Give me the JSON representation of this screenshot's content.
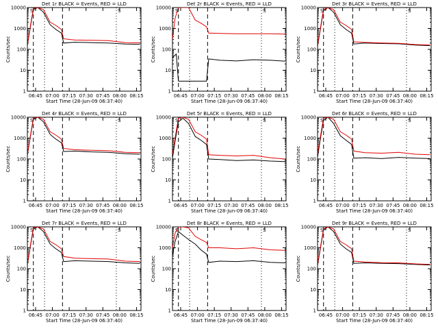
{
  "colors": {
    "events": "#000000",
    "lld": "#e00000"
  },
  "chart_data": [
    {
      "type": "line",
      "title": "Det 1r BLACK = Events, RED = LLD",
      "xlabel": "Start Time (28-Jun-09 06:37:40)",
      "ylabel": "Counts/sec",
      "yscale": "log",
      "ylim": [
        1,
        10000
      ],
      "xlim": [
        "06:37:40",
        "08:19:00"
      ],
      "xticks": [
        "06:45",
        "07:00",
        "07:15",
        "07:30",
        "07:45",
        "08:00",
        "08:15"
      ],
      "yticks": [
        "1",
        "10",
        "100",
        "1000",
        "10000"
      ],
      "saa_marker": "S",
      "vlines_dashed": [
        "06:43",
        "07:09"
      ],
      "vlines_dotted": [
        "06:53",
        "07:57"
      ],
      "series": [
        {
          "name": "Events",
          "x": [
            "06:37:40",
            "06:40",
            "06:43",
            "06:47",
            "06:52",
            "06:58",
            "07:03",
            "07:08",
            "07:10",
            "07:20",
            "07:35",
            "07:50",
            "08:05",
            "08:18"
          ],
          "y": [
            150,
            900,
            8000,
            10000,
            6000,
            1500,
            900,
            600,
            200,
            220,
            210,
            200,
            180,
            175
          ]
        },
        {
          "name": "LLD",
          "x": [
            "06:37:40",
            "06:40",
            "06:43",
            "06:47",
            "06:52",
            "06:58",
            "07:03",
            "07:08",
            "07:10",
            "07:20",
            "07:35",
            "07:50",
            "08:05",
            "08:18"
          ],
          "y": [
            170,
            1000,
            9000,
            10000,
            8000,
            2000,
            1400,
            900,
            320,
            280,
            270,
            260,
            210,
            205
          ]
        }
      ]
    },
    {
      "type": "line",
      "title": "Det 2r BLACK = Events, RED = LLD",
      "xlabel": "Start Time (28-Jun-09 06:37:40)",
      "ylabel": "Counts/sec",
      "yscale": "log",
      "ylim": [
        1,
        10000
      ],
      "xlim": [
        "06:37:40",
        "08:19:00"
      ],
      "xticks": [
        "06:45",
        "07:00",
        "07:15",
        "07:30",
        "07:45",
        "08:00",
        "08:15"
      ],
      "yticks": [
        "1",
        "10",
        "100",
        "1000",
        "10000"
      ],
      "saa_marker": "S",
      "vlines_dashed": [
        "06:43",
        "07:09"
      ],
      "vlines_dotted": [
        "06:53",
        "07:57"
      ],
      "series": [
        {
          "name": "Events",
          "x": [
            "06:37:40",
            "06:41",
            "06:43",
            "07:08",
            "07:10",
            "07:20",
            "07:35",
            "07:50",
            "08:05",
            "08:18"
          ],
          "y": [
            40,
            60,
            3,
            3,
            35,
            30,
            28,
            32,
            30,
            27
          ]
        },
        {
          "name": "LLD",
          "x": [
            "06:37:40",
            "06:40",
            "06:43",
            "06:47",
            "06:52",
            "06:58",
            "07:03",
            "07:08",
            "07:10",
            "07:20",
            "07:35",
            "07:50",
            "08:05",
            "08:18"
          ],
          "y": [
            300,
            3000,
            10000,
            10000,
            10000,
            2500,
            1800,
            1200,
            600,
            580,
            560,
            560,
            560,
            540
          ]
        }
      ]
    },
    {
      "type": "line",
      "title": "Det 3r BLACK = Events, RED = LLD",
      "xlabel": "Start Time (28-Jun-09 06:37:40)",
      "ylabel": "Counts/sec",
      "yscale": "log",
      "ylim": [
        1,
        10000
      ],
      "xlim": [
        "06:37:40",
        "08:19:00"
      ],
      "xticks": [
        "06:45",
        "07:00",
        "07:15",
        "07:30",
        "07:45",
        "08:00",
        "08:15"
      ],
      "yticks": [
        "1",
        "10",
        "100",
        "1000",
        "10000"
      ],
      "saa_marker": "S",
      "vlines_dashed": [
        "06:43",
        "07:09"
      ],
      "vlines_dotted": [
        "06:53",
        "07:57"
      ],
      "series": [
        {
          "name": "Events",
          "x": [
            "06:37:40",
            "06:40",
            "06:43",
            "06:47",
            "06:52",
            "06:58",
            "07:03",
            "07:08",
            "07:10",
            "07:20",
            "07:35",
            "07:50",
            "08:05",
            "08:18"
          ],
          "y": [
            140,
            800,
            7000,
            10000,
            6000,
            1500,
            900,
            600,
            180,
            200,
            190,
            185,
            160,
            150
          ]
        },
        {
          "name": "LLD",
          "x": [
            "06:37:40",
            "06:40",
            "06:43",
            "06:47",
            "06:52",
            "06:58",
            "07:03",
            "07:08",
            "07:10",
            "07:20",
            "07:35",
            "07:50",
            "08:05",
            "08:18"
          ],
          "y": [
            160,
            900,
            8000,
            10000,
            8000,
            2000,
            1400,
            900,
            230,
            215,
            200,
            195,
            170,
            160
          ]
        }
      ]
    },
    {
      "type": "line",
      "title": "Det 4r BLACK = Events, RED = LLD",
      "xlabel": "Start Time (28-Jun-09 06:37:40)",
      "ylabel": "Counts/sec",
      "yscale": "log",
      "ylim": [
        1,
        10000
      ],
      "xlim": [
        "06:37:40",
        "08:19:00"
      ],
      "xticks": [
        "06:45",
        "07:00",
        "07:15",
        "07:30",
        "07:45",
        "08:00",
        "08:15"
      ],
      "yticks": [
        "1",
        "10",
        "100",
        "1000",
        "10000"
      ],
      "saa_marker": "S",
      "vlines_dashed": [
        "06:43",
        "07:09"
      ],
      "vlines_dotted": [
        "06:53",
        "07:57"
      ],
      "series": [
        {
          "name": "Events",
          "x": [
            "06:37:40",
            "06:40",
            "06:43",
            "06:47",
            "06:52",
            "06:58",
            "07:03",
            "07:08",
            "07:10",
            "07:20",
            "07:35",
            "07:50",
            "08:05",
            "08:18"
          ],
          "y": [
            150,
            900,
            8000,
            10000,
            6000,
            1500,
            900,
            600,
            230,
            240,
            220,
            210,
            180,
            170
          ]
        },
        {
          "name": "LLD",
          "x": [
            "06:37:40",
            "06:40",
            "06:43",
            "06:47",
            "06:52",
            "06:58",
            "07:03",
            "07:08",
            "07:10",
            "07:20",
            "07:35",
            "07:50",
            "08:05",
            "08:18"
          ],
          "y": [
            170,
            1000,
            9000,
            10000,
            8000,
            2000,
            1400,
            900,
            320,
            280,
            260,
            250,
            210,
            200
          ]
        }
      ]
    },
    {
      "type": "line",
      "title": "Det 5r BLACK = Events, RED = LLD",
      "xlabel": "Start Time (28-Jun-09 06:37:40)",
      "ylabel": "Counts/sec",
      "yscale": "log",
      "ylim": [
        1,
        10000
      ],
      "xlim": [
        "06:37:40",
        "08:19:00"
      ],
      "xticks": [
        "06:45",
        "07:00",
        "07:15",
        "07:30",
        "07:45",
        "08:00",
        "08:15"
      ],
      "yticks": [
        "1",
        "10",
        "100",
        "1000",
        "10000"
      ],
      "saa_marker": "S",
      "vlines_dashed": [
        "06:43",
        "07:09"
      ],
      "vlines_dotted": [
        "06:53",
        "07:57"
      ],
      "series": [
        {
          "name": "Events",
          "x": [
            "06:37:40",
            "06:40",
            "06:43",
            "06:47",
            "06:52",
            "06:58",
            "07:03",
            "07:08",
            "07:10",
            "07:20",
            "07:35",
            "07:50",
            "08:05",
            "08:18"
          ],
          "y": [
            110,
            700,
            6000,
            9000,
            5000,
            1200,
            800,
            500,
            100,
            95,
            85,
            90,
            80,
            75
          ]
        },
        {
          "name": "LLD",
          "x": [
            "06:37:40",
            "06:40",
            "06:43",
            "06:47",
            "06:52",
            "06:58",
            "07:03",
            "07:08",
            "07:10",
            "07:20",
            "07:35",
            "07:50",
            "08:05",
            "08:18"
          ],
          "y": [
            170,
            1000,
            9000,
            10000,
            8000,
            2000,
            1400,
            900,
            160,
            150,
            140,
            150,
            115,
            100
          ]
        }
      ]
    },
    {
      "type": "line",
      "title": "Det 6r BLACK = Events, RED = LLD",
      "xlabel": "Start Time (28-Jun-09 06:37:40)",
      "ylabel": "Counts/sec",
      "yscale": "log",
      "ylim": [
        1,
        10000
      ],
      "xlim": [
        "06:37:40",
        "08:19:00"
      ],
      "xticks": [
        "06:45",
        "07:00",
        "07:15",
        "07:30",
        "07:45",
        "08:00",
        "08:15"
      ],
      "yticks": [
        "1",
        "10",
        "100",
        "1000",
        "10000"
      ],
      "saa_marker": "S",
      "vlines_dashed": [
        "06:43",
        "07:09"
      ],
      "vlines_dotted": [
        "06:53",
        "07:57"
      ],
      "series": [
        {
          "name": "Events",
          "x": [
            "06:37:40",
            "06:40",
            "06:43",
            "06:47",
            "06:52",
            "06:58",
            "07:03",
            "07:08",
            "07:10",
            "07:20",
            "07:35",
            "07:50",
            "08:05",
            "08:18"
          ],
          "y": [
            120,
            800,
            7000,
            10000,
            5000,
            1300,
            800,
            500,
            110,
            115,
            105,
            120,
            110,
            105
          ]
        },
        {
          "name": "LLD",
          "x": [
            "06:37:40",
            "06:40",
            "06:43",
            "06:47",
            "06:52",
            "06:58",
            "07:03",
            "07:08",
            "07:10",
            "07:20",
            "07:35",
            "07:50",
            "08:05",
            "08:18"
          ],
          "y": [
            170,
            1000,
            9000,
            10000,
            8000,
            2000,
            1400,
            900,
            240,
            200,
            190,
            210,
            170,
            160
          ]
        }
      ]
    },
    {
      "type": "line",
      "title": "Det 7r BLACK = Events, RED = LLD",
      "xlabel": "Start Time (28-Jun-09 06:37:40)",
      "ylabel": "Counts/sec",
      "yscale": "log",
      "ylim": [
        1,
        10000
      ],
      "xlim": [
        "06:37:40",
        "08:19:00"
      ],
      "xticks": [
        "06:45",
        "07:00",
        "07:15",
        "07:30",
        "07:45",
        "08:00",
        "08:15"
      ],
      "yticks": [
        "1",
        "10",
        "100",
        "1000",
        "10000"
      ],
      "saa_marker": "S",
      "vlines_dashed": [
        "06:43",
        "07:09"
      ],
      "vlines_dotted": [
        "06:53",
        "07:57"
      ],
      "series": [
        {
          "name": "Events",
          "x": [
            "06:37:40",
            "06:40",
            "06:43",
            "06:47",
            "06:52",
            "06:58",
            "07:03",
            "07:08",
            "07:10",
            "07:20",
            "07:35",
            "07:50",
            "08:05",
            "08:18"
          ],
          "y": [
            150,
            900,
            8000,
            10000,
            6000,
            1500,
            900,
            600,
            220,
            240,
            230,
            220,
            190,
            180
          ]
        },
        {
          "name": "LLD",
          "x": [
            "06:37:40",
            "06:40",
            "06:43",
            "06:47",
            "06:52",
            "06:58",
            "07:03",
            "07:08",
            "07:10",
            "07:20",
            "07:35",
            "07:50",
            "08:05",
            "08:18"
          ],
          "y": [
            170,
            1000,
            9000,
            10000,
            8000,
            2000,
            1400,
            900,
            380,
            320,
            300,
            290,
            230,
            220
          ]
        }
      ]
    },
    {
      "type": "line",
      "title": "Det 8r BLACK = Events, RED = LLD",
      "xlabel": "Start Time (28-Jun-09 06:37:40)",
      "ylabel": "Counts/sec",
      "yscale": "log",
      "ylim": [
        1,
        10000
      ],
      "xlim": [
        "06:37:40",
        "08:19:00"
      ],
      "xticks": [
        "06:45",
        "07:00",
        "07:15",
        "07:30",
        "07:45",
        "08:00",
        "08:15"
      ],
      "yticks": [
        "1",
        "10",
        "100",
        "1000",
        "10000"
      ],
      "saa_marker": "S",
      "vlines_dashed": [
        "06:43",
        "07:09"
      ],
      "vlines_dotted": [
        "06:53",
        "07:57"
      ],
      "series": [
        {
          "name": "Events",
          "x": [
            "06:37:40",
            "06:40",
            "06:43",
            "06:47",
            "06:52",
            "06:58",
            "07:03",
            "07:08",
            "07:10",
            "07:20",
            "07:35",
            "07:50",
            "08:05",
            "08:18"
          ],
          "y": [
            400,
            2000,
            6000,
            4000,
            2500,
            1500,
            800,
            500,
            200,
            230,
            220,
            240,
            200,
            190
          ]
        },
        {
          "name": "LLD",
          "x": [
            "06:37:40",
            "06:40",
            "06:43",
            "06:47",
            "06:52",
            "06:58",
            "07:03",
            "07:08",
            "07:10",
            "07:20",
            "07:35",
            "07:50",
            "08:05",
            "08:18"
          ],
          "y": [
            1000,
            5000,
            10000,
            10000,
            9000,
            3500,
            2500,
            1800,
            1000,
            1000,
            900,
            1000,
            800,
            750
          ]
        }
      ]
    },
    {
      "type": "line",
      "title": "Det 9r BLACK = Events, RED = LLD",
      "xlabel": "Start Time (28-Jun-09 06:37:40)",
      "ylabel": "Counts/sec",
      "yscale": "log",
      "ylim": [
        1,
        10000
      ],
      "xlim": [
        "06:37:40",
        "08:19:00"
      ],
      "xticks": [
        "06:45",
        "07:00",
        "07:15",
        "07:30",
        "07:45",
        "08:00",
        "08:15"
      ],
      "yticks": [
        "1",
        "10",
        "100",
        "1000",
        "10000"
      ],
      "saa_marker": "S",
      "vlines_dashed": [
        "06:43",
        "07:09"
      ],
      "vlines_dotted": [
        "06:53",
        "07:57"
      ],
      "series": [
        {
          "name": "Events",
          "x": [
            "06:37:40",
            "06:40",
            "06:43",
            "06:47",
            "06:52",
            "06:58",
            "07:03",
            "07:08",
            "07:10",
            "07:20",
            "07:35",
            "07:50",
            "08:05",
            "08:18"
          ],
          "y": [
            140,
            800,
            7000,
            10000,
            6000,
            1500,
            900,
            600,
            180,
            190,
            180,
            175,
            160,
            150
          ]
        },
        {
          "name": "LLD",
          "x": [
            "06:37:40",
            "06:40",
            "06:43",
            "06:47",
            "06:52",
            "06:58",
            "07:03",
            "07:08",
            "07:10",
            "07:20",
            "07:35",
            "07:50",
            "08:05",
            "08:18"
          ],
          "y": [
            160,
            900,
            8000,
            10000,
            8000,
            2000,
            1400,
            900,
            230,
            210,
            195,
            190,
            170,
            160
          ]
        }
      ]
    }
  ]
}
